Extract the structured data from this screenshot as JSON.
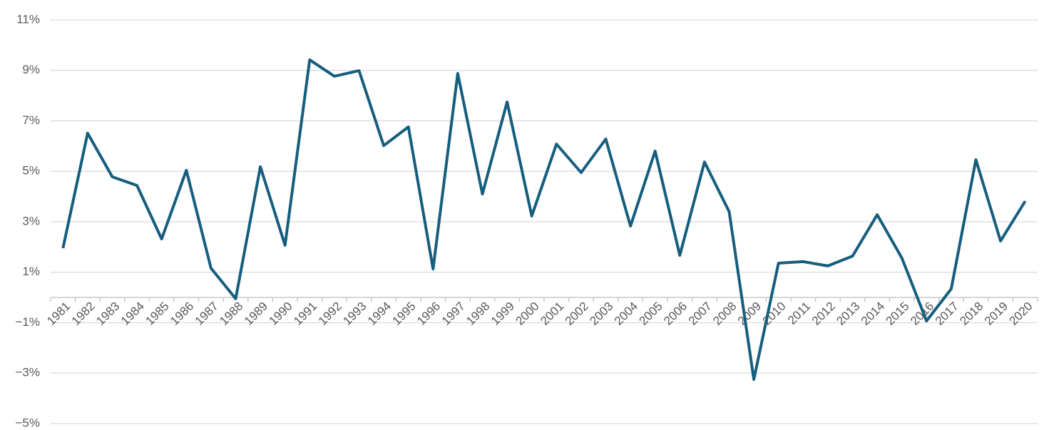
{
  "chart_data": {
    "type": "line",
    "categories": [
      "1981",
      "1982",
      "1983",
      "1984",
      "1985",
      "1986",
      "1987",
      "1988",
      "1989",
      "1990",
      "1991",
      "1992",
      "1993",
      "1994",
      "1995",
      "1996",
      "1997",
      "1998",
      "1999",
      "2000",
      "2001",
      "2002",
      "2003",
      "2004",
      "2005",
      "2006",
      "2007",
      "2008",
      "2009",
      "2010",
      "2011",
      "2012",
      "2013",
      "2014",
      "2015",
      "2016",
      "2017",
      "2018",
      "2019",
      "2020"
    ],
    "values": [
      1.95,
      6.51,
      4.78,
      4.44,
      2.32,
      5.04,
      1.16,
      -0.05,
      5.18,
      2.07,
      9.42,
      8.77,
      8.99,
      6.02,
      6.76,
      1.13,
      8.88,
      4.1,
      7.75,
      3.23,
      6.08,
      4.95,
      6.28,
      2.83,
      5.8,
      1.67,
      5.37,
      3.4,
      -3.25,
      1.36,
      1.42,
      1.25,
      1.64,
      3.28,
      1.56,
      -0.93,
      0.34,
      5.46,
      2.24,
      3.82
    ],
    "color": "#165e7e",
    "ylim": [
      -5,
      11
    ],
    "yticks": [
      {
        "value": -5,
        "label": "−5%"
      },
      {
        "value": -3,
        "label": "−3%"
      },
      {
        "value": -1,
        "label": "−1%"
      },
      {
        "value": 1,
        "label": "1%"
      },
      {
        "value": 3,
        "label": "3%"
      },
      {
        "value": 5,
        "label": "5%"
      },
      {
        "value": 7,
        "label": "7%"
      },
      {
        "value": 9,
        "label": "9%"
      },
      {
        "value": 11,
        "label": "11%"
      }
    ],
    "grid": true
  }
}
